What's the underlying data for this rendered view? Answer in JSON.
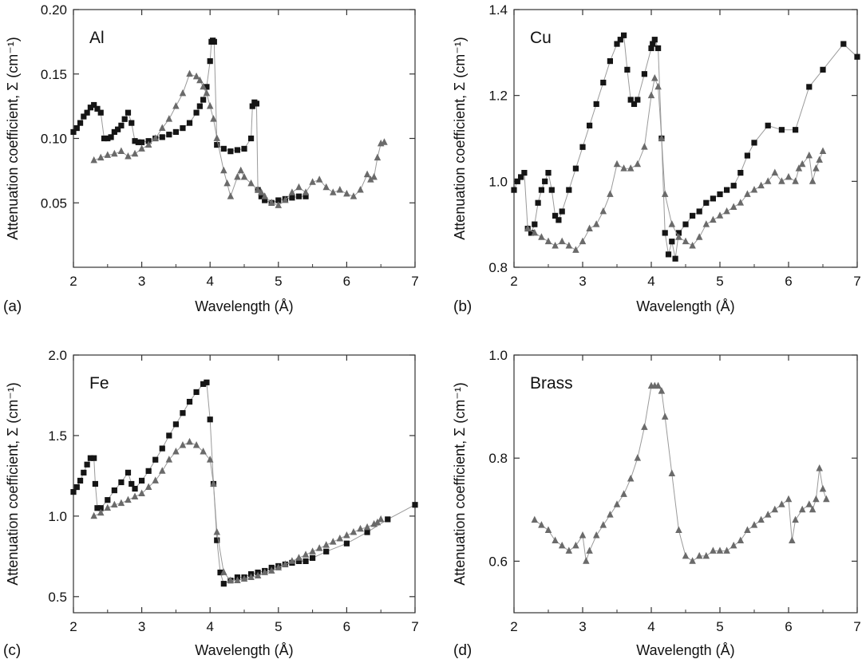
{
  "figure": {
    "colors": {
      "sq": "#151515",
      "tri": "#6a6a6a",
      "line": "#9a9a9a",
      "axis": "#333333"
    }
  },
  "chart_data": [
    {
      "type": "scatter",
      "panel_letter": "(a)",
      "panel_label": "Al",
      "xlabel": "Wavelength (Å)",
      "ylabel": "Attenuation coefficient, Σ (cm⁻¹)",
      "xlim": [
        2,
        7
      ],
      "ylim": [
        0.0,
        0.2
      ],
      "xticks": [
        2,
        3,
        4,
        5,
        6,
        7
      ],
      "xtick_labels": [
        "2",
        "3",
        "4",
        "5",
        "6",
        "7"
      ],
      "yticks": [
        0.05,
        0.1,
        0.15,
        0.2
      ],
      "ytick_labels": [
        "0.05",
        "0.10",
        "0.15",
        "0.20"
      ],
      "grid": false,
      "series": [
        {
          "marker": "square",
          "x": [
            2.0,
            2.05,
            2.1,
            2.15,
            2.2,
            2.25,
            2.3,
            2.35,
            2.4,
            2.45,
            2.5,
            2.55,
            2.6,
            2.65,
            2.7,
            2.75,
            2.8,
            2.85,
            2.9,
            2.95,
            3.0,
            3.1,
            3.2,
            3.3,
            3.4,
            3.5,
            3.6,
            3.7,
            3.8,
            3.85,
            3.9,
            3.95,
            4.0,
            4.02,
            4.04,
            4.06,
            4.1,
            4.2,
            4.3,
            4.4,
            4.5,
            4.6,
            4.62,
            4.65,
            4.68,
            4.7,
            4.75,
            4.8,
            4.9,
            5.0,
            5.1,
            5.2,
            5.3,
            5.4
          ],
          "y": [
            0.105,
            0.108,
            0.112,
            0.117,
            0.12,
            0.124,
            0.126,
            0.123,
            0.12,
            0.1,
            0.1,
            0.101,
            0.105,
            0.107,
            0.11,
            0.115,
            0.12,
            0.112,
            0.098,
            0.097,
            0.097,
            0.098,
            0.1,
            0.101,
            0.103,
            0.105,
            0.108,
            0.112,
            0.12,
            0.125,
            0.13,
            0.14,
            0.16,
            0.175,
            0.176,
            0.175,
            0.095,
            0.092,
            0.09,
            0.091,
            0.092,
            0.1,
            0.125,
            0.128,
            0.127,
            0.06,
            0.055,
            0.052,
            0.05,
            0.052,
            0.053,
            0.054,
            0.055,
            0.055
          ]
        },
        {
          "marker": "triangle",
          "x": [
            2.3,
            2.4,
            2.5,
            2.6,
            2.7,
            2.8,
            2.9,
            3.0,
            3.1,
            3.2,
            3.3,
            3.4,
            3.5,
            3.6,
            3.7,
            3.8,
            3.85,
            3.9,
            3.95,
            4.0,
            4.05,
            4.1,
            4.2,
            4.25,
            4.3,
            4.4,
            4.45,
            4.5,
            4.6,
            4.7,
            4.75,
            4.8,
            4.9,
            5.0,
            5.1,
            5.2,
            5.3,
            5.4,
            5.5,
            5.6,
            5.7,
            5.8,
            5.9,
            6.0,
            6.1,
            6.2,
            6.3,
            6.35,
            6.4,
            6.45,
            6.5,
            6.55
          ],
          "y": [
            0.083,
            0.085,
            0.087,
            0.088,
            0.09,
            0.086,
            0.088,
            0.092,
            0.095,
            0.1,
            0.108,
            0.115,
            0.125,
            0.135,
            0.15,
            0.148,
            0.145,
            0.14,
            0.135,
            0.125,
            0.115,
            0.1,
            0.075,
            0.065,
            0.055,
            0.07,
            0.075,
            0.07,
            0.065,
            0.06,
            0.058,
            0.055,
            0.05,
            0.048,
            0.052,
            0.058,
            0.062,
            0.058,
            0.066,
            0.068,
            0.062,
            0.058,
            0.06,
            0.057,
            0.055,
            0.06,
            0.072,
            0.068,
            0.07,
            0.085,
            0.096,
            0.097
          ]
        }
      ]
    },
    {
      "type": "scatter",
      "panel_letter": "(b)",
      "panel_label": "Cu",
      "xlabel": "Wavelength (Å)",
      "ylabel": "Attenuation coefficient, Σ (cm⁻¹)",
      "xlim": [
        2,
        7
      ],
      "ylim": [
        0.8,
        1.4
      ],
      "xticks": [
        2,
        3,
        4,
        5,
        6,
        7
      ],
      "xtick_labels": [
        "2",
        "3",
        "4",
        "5",
        "6",
        "7"
      ],
      "yticks": [
        0.8,
        1.0,
        1.2,
        1.4
      ],
      "ytick_labels": [
        "0.8",
        "1.0",
        "1.2",
        "1.4"
      ],
      "grid": false,
      "series": [
        {
          "marker": "square",
          "x": [
            2.0,
            2.05,
            2.1,
            2.15,
            2.2,
            2.25,
            2.3,
            2.35,
            2.4,
            2.45,
            2.5,
            2.55,
            2.6,
            2.65,
            2.7,
            2.8,
            2.9,
            3.0,
            3.1,
            3.2,
            3.3,
            3.4,
            3.5,
            3.55,
            3.6,
            3.65,
            3.7,
            3.75,
            3.8,
            3.9,
            4.0,
            4.02,
            4.05,
            4.1,
            4.15,
            4.2,
            4.25,
            4.3,
            4.35,
            4.4,
            4.5,
            4.6,
            4.7,
            4.8,
            4.9,
            5.0,
            5.1,
            5.2,
            5.3,
            5.4,
            5.5,
            5.7,
            5.9,
            6.1,
            6.3,
            6.5,
            6.8,
            7.0
          ],
          "y": [
            0.98,
            1.0,
            1.01,
            1.02,
            0.89,
            0.88,
            0.9,
            0.95,
            0.98,
            1.0,
            1.02,
            0.98,
            0.92,
            0.91,
            0.93,
            0.98,
            1.03,
            1.08,
            1.13,
            1.18,
            1.23,
            1.28,
            1.32,
            1.33,
            1.34,
            1.26,
            1.19,
            1.18,
            1.19,
            1.25,
            1.31,
            1.32,
            1.33,
            1.31,
            1.1,
            0.88,
            0.83,
            0.86,
            0.82,
            0.88,
            0.9,
            0.92,
            0.93,
            0.95,
            0.96,
            0.97,
            0.98,
            0.99,
            1.02,
            1.06,
            1.09,
            1.13,
            1.12,
            1.12,
            1.22,
            1.26,
            1.32,
            1.29
          ]
        },
        {
          "marker": "triangle",
          "x": [
            2.2,
            2.3,
            2.4,
            2.5,
            2.6,
            2.7,
            2.8,
            2.9,
            3.0,
            3.1,
            3.2,
            3.3,
            3.4,
            3.5,
            3.6,
            3.7,
            3.8,
            3.9,
            4.0,
            4.05,
            4.1,
            4.15,
            4.2,
            4.3,
            4.4,
            4.5,
            4.6,
            4.7,
            4.8,
            4.9,
            5.0,
            5.1,
            5.2,
            5.3,
            5.4,
            5.5,
            5.6,
            5.7,
            5.8,
            5.9,
            6.0,
            6.1,
            6.15,
            6.2,
            6.3,
            6.35,
            6.4,
            6.45,
            6.5
          ],
          "y": [
            0.89,
            0.88,
            0.87,
            0.86,
            0.85,
            0.86,
            0.85,
            0.84,
            0.86,
            0.89,
            0.9,
            0.93,
            0.97,
            1.04,
            1.03,
            1.03,
            1.04,
            1.08,
            1.2,
            1.24,
            1.22,
            1.1,
            0.97,
            0.9,
            0.87,
            0.86,
            0.85,
            0.87,
            0.9,
            0.91,
            0.92,
            0.93,
            0.94,
            0.95,
            0.97,
            0.98,
            0.99,
            1.0,
            1.02,
            1.0,
            1.01,
            1.0,
            1.03,
            1.04,
            1.06,
            1.0,
            1.03,
            1.05,
            1.07
          ]
        }
      ]
    },
    {
      "type": "scatter",
      "panel_letter": "(c)",
      "panel_label": "Fe",
      "xlabel": "Wavelength (Å)",
      "ylabel": "Attenuation coefficient, Σ (cm⁻¹)",
      "xlim": [
        2,
        7
      ],
      "ylim": [
        0.4,
        2.0
      ],
      "xticks": [
        2,
        3,
        4,
        5,
        6,
        7
      ],
      "xtick_labels": [
        "2",
        "3",
        "4",
        "5",
        "6",
        "7"
      ],
      "yticks": [
        0.5,
        1.0,
        1.5,
        2.0
      ],
      "ytick_labels": [
        "0.5",
        "1.0",
        "1.5",
        "2.0"
      ],
      "grid": false,
      "series": [
        {
          "marker": "square",
          "x": [
            2.0,
            2.05,
            2.1,
            2.15,
            2.2,
            2.25,
            2.3,
            2.32,
            2.35,
            2.4,
            2.5,
            2.6,
            2.7,
            2.8,
            2.85,
            2.9,
            3.0,
            3.1,
            3.2,
            3.3,
            3.4,
            3.5,
            3.6,
            3.7,
            3.8,
            3.9,
            3.95,
            4.0,
            4.05,
            4.1,
            4.15,
            4.2,
            4.3,
            4.4,
            4.5,
            4.6,
            4.7,
            4.8,
            4.9,
            5.0,
            5.1,
            5.2,
            5.3,
            5.4,
            5.5,
            5.7,
            6.0,
            6.3,
            6.6,
            7.0
          ],
          "y": [
            1.15,
            1.18,
            1.22,
            1.27,
            1.32,
            1.36,
            1.36,
            1.2,
            1.05,
            1.05,
            1.1,
            1.16,
            1.21,
            1.27,
            1.2,
            1.17,
            1.22,
            1.28,
            1.35,
            1.42,
            1.5,
            1.57,
            1.64,
            1.71,
            1.77,
            1.82,
            1.83,
            1.6,
            1.2,
            0.85,
            0.65,
            0.58,
            0.6,
            0.62,
            0.62,
            0.64,
            0.65,
            0.66,
            0.68,
            0.69,
            0.7,
            0.71,
            0.72,
            0.72,
            0.74,
            0.78,
            0.83,
            0.9,
            0.98,
            1.07
          ]
        },
        {
          "marker": "triangle",
          "x": [
            2.3,
            2.4,
            2.5,
            2.6,
            2.7,
            2.8,
            2.9,
            3.0,
            3.1,
            3.2,
            3.3,
            3.4,
            3.5,
            3.6,
            3.7,
            3.8,
            3.9,
            4.0,
            4.05,
            4.1,
            4.2,
            4.3,
            4.4,
            4.5,
            4.6,
            4.7,
            4.8,
            4.9,
            5.0,
            5.1,
            5.2,
            5.3,
            5.4,
            5.5,
            5.6,
            5.7,
            5.8,
            5.9,
            6.0,
            6.1,
            6.2,
            6.3,
            6.4,
            6.45,
            6.5
          ],
          "y": [
            1.0,
            1.02,
            1.05,
            1.07,
            1.08,
            1.1,
            1.12,
            1.14,
            1.18,
            1.22,
            1.28,
            1.35,
            1.4,
            1.44,
            1.46,
            1.44,
            1.4,
            1.35,
            1.2,
            0.9,
            0.65,
            0.6,
            0.6,
            0.61,
            0.62,
            0.63,
            0.65,
            0.66,
            0.68,
            0.7,
            0.72,
            0.74,
            0.76,
            0.78,
            0.8,
            0.82,
            0.84,
            0.86,
            0.88,
            0.9,
            0.92,
            0.93,
            0.95,
            0.96,
            0.98
          ]
        }
      ]
    },
    {
      "type": "scatter",
      "panel_letter": "(d)",
      "panel_label": "Brass",
      "xlabel": "Wavelength (Å)",
      "ylabel": "Attenuation coefficient, Σ (cm⁻¹)",
      "xlim": [
        2,
        7
      ],
      "ylim": [
        0.5,
        1.0
      ],
      "xticks": [
        2,
        3,
        4,
        5,
        6,
        7
      ],
      "xtick_labels": [
        "2",
        "3",
        "4",
        "5",
        "6",
        "7"
      ],
      "yticks": [
        0.6,
        0.8,
        1.0
      ],
      "ytick_labels": [
        "0.6",
        "0.8",
        "1.0"
      ],
      "grid": false,
      "series": [
        {
          "marker": "triangle",
          "x": [
            2.3,
            2.4,
            2.5,
            2.6,
            2.7,
            2.8,
            2.9,
            3.0,
            3.05,
            3.1,
            3.2,
            3.3,
            3.4,
            3.5,
            3.6,
            3.7,
            3.8,
            3.9,
            4.0,
            4.05,
            4.1,
            4.15,
            4.2,
            4.3,
            4.4,
            4.5,
            4.6,
            4.7,
            4.8,
            4.9,
            5.0,
            5.1,
            5.2,
            5.3,
            5.4,
            5.5,
            5.6,
            5.7,
            5.8,
            5.9,
            6.0,
            6.05,
            6.1,
            6.2,
            6.3,
            6.35,
            6.4,
            6.45,
            6.5,
            6.55
          ],
          "y": [
            0.68,
            0.67,
            0.66,
            0.64,
            0.63,
            0.62,
            0.63,
            0.65,
            0.6,
            0.62,
            0.65,
            0.67,
            0.69,
            0.71,
            0.73,
            0.76,
            0.8,
            0.86,
            0.94,
            0.94,
            0.94,
            0.93,
            0.88,
            0.77,
            0.66,
            0.61,
            0.6,
            0.61,
            0.61,
            0.62,
            0.62,
            0.62,
            0.63,
            0.64,
            0.66,
            0.67,
            0.68,
            0.69,
            0.7,
            0.71,
            0.72,
            0.64,
            0.68,
            0.7,
            0.71,
            0.7,
            0.72,
            0.78,
            0.74,
            0.72
          ]
        }
      ]
    }
  ]
}
